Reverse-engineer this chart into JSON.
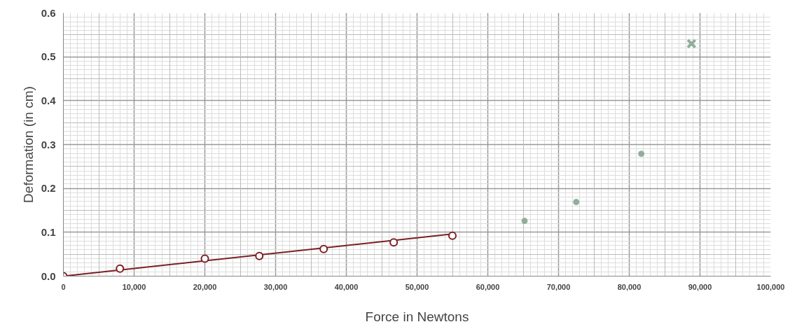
{
  "chart_data": {
    "type": "scatter",
    "xlabel": "Force in Newtons",
    "ylabel": "Deformation (in cm)",
    "xlim": [
      0,
      100000
    ],
    "ylim": [
      0,
      0.6
    ],
    "xticks": [
      0,
      {
        "value": 10000,
        "label": "10,000"
      },
      {
        "value": 20000,
        "label": "20,000"
      },
      {
        "value": 30000,
        "label": "30,000"
      },
      {
        "value": 40000,
        "label": "40,000"
      },
      {
        "value": 50000,
        "label": "50,000"
      },
      {
        "value": 60000,
        "label": "60,000"
      },
      {
        "value": 70000,
        "label": "70,000"
      },
      {
        "value": 80000,
        "label": "80,000"
      },
      {
        "value": 90000,
        "label": "90,000"
      },
      {
        "value": 100000,
        "label": "100,000"
      }
    ],
    "yticks": [
      {
        "value": 0,
        "label": "0.0"
      },
      0.1,
      0.2,
      0.3,
      0.4,
      0.5,
      0.6
    ],
    "grid": true,
    "series": [
      {
        "type": "line",
        "color": "#7b1f24",
        "marker": "none",
        "x": [
          0,
          55000
        ],
        "values": [
          0,
          0.096
        ]
      },
      {
        "color": "#7b1f24",
        "marker": "open_circle",
        "x": [
          0,
          8000,
          20000,
          27700,
          36800,
          46700,
          55000
        ],
        "values": [
          0,
          0.017,
          0.04,
          0.046,
          0.062,
          0.077,
          0.092
        ]
      },
      {
        "color": "#8faf9a",
        "marker": "circle",
        "x": [
          65200,
          72500,
          81700
        ],
        "values": [
          0.126,
          0.169,
          0.279
        ]
      },
      {
        "color": "#8faf9a",
        "marker": "cross",
        "x": [
          88800
        ],
        "values": [
          0.53
        ]
      }
    ]
  }
}
